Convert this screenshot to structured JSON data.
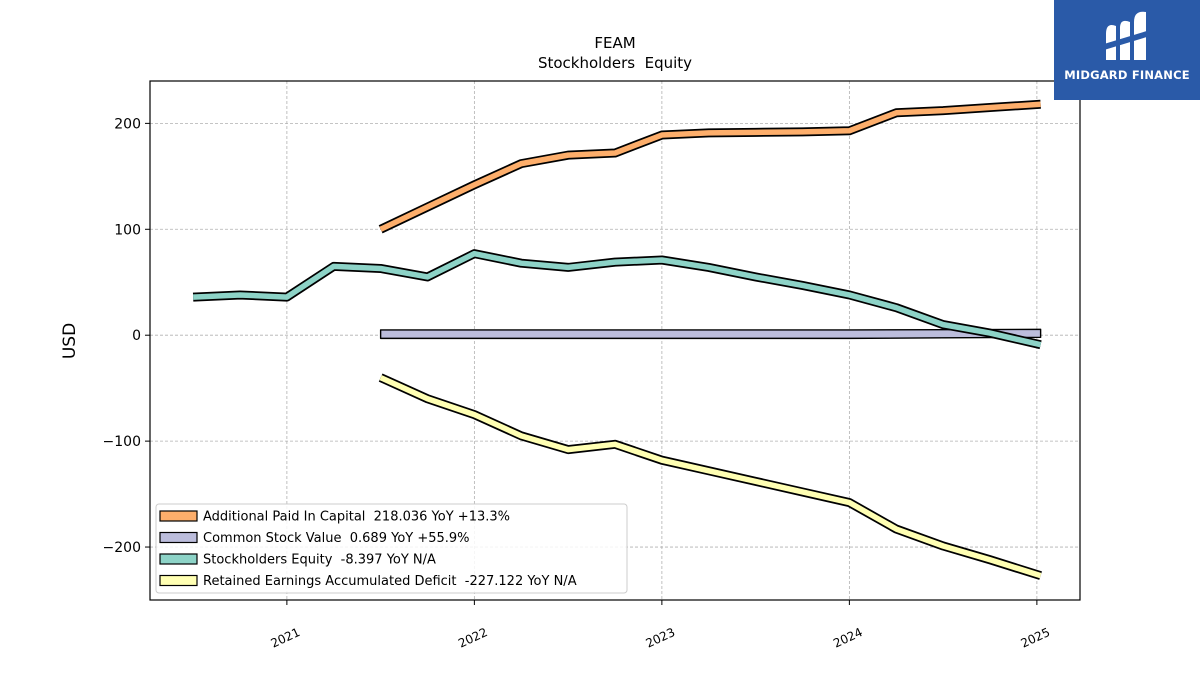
{
  "logo": {
    "text": "MIDGARD FINANCE",
    "bg_color": "#2a5aa8"
  },
  "chart_data": {
    "type": "line",
    "title": "FEAM",
    "subtitle": "Stockholders  Equity",
    "ylabel": "USD",
    "xlabel": "",
    "ylim": [
      -250,
      240
    ],
    "xlim": [
      2020.27,
      2025.23
    ],
    "yticks": [
      200,
      100,
      0,
      -100,
      -200
    ],
    "ytick_labels": [
      "200",
      "100",
      "0",
      "−100",
      "−200"
    ],
    "xticks": [
      2021,
      2022,
      2023,
      2024,
      2025
    ],
    "xtick_labels": [
      "2021",
      "2022",
      "2023",
      "2024",
      "2025"
    ],
    "grid": true,
    "legend_position": "bottom-left",
    "series": [
      {
        "name": "Additional Paid In Capital",
        "legend": "Additional Paid In Capital  218.036 YoY +13.3%",
        "color": "#fdae6b",
        "x": [
          2021.5,
          2021.75,
          2022.0,
          2022.25,
          2022.5,
          2022.75,
          2023.0,
          2023.25,
          2023.5,
          2023.75,
          2024.0,
          2024.25,
          2024.5,
          2024.75,
          2025.02
        ],
        "y": [
          100,
          121,
          142,
          162,
          170,
          172,
          189,
          191,
          191.5,
          192,
          193,
          210,
          212,
          215,
          218
        ]
      },
      {
        "name": "Common Stock Value",
        "legend": "Common Stock Value  0.689 YoY +55.9%",
        "color": "#bcbddc",
        "band": true,
        "x": [
          2021.5,
          2022.0,
          2022.5,
          2023.0,
          2023.5,
          2024.0,
          2024.5,
          2025.02
        ],
        "y_low": [
          -3,
          -3,
          -3,
          -3,
          -3,
          -3,
          -2.5,
          -2
        ],
        "y_high": [
          5,
          5,
          5,
          5,
          5,
          5,
          5.2,
          5.5
        ]
      },
      {
        "name": "Stockholders Equity",
        "legend": "Stockholders Equity  -8.397 YoY N/A",
        "color": "#8dd3c7",
        "x": [
          2020.5,
          2020.75,
          2021.0,
          2021.25,
          2021.5,
          2021.75,
          2022.0,
          2022.25,
          2022.5,
          2022.75,
          2023.0,
          2023.25,
          2023.5,
          2023.75,
          2024.0,
          2024.25,
          2024.5,
          2024.75,
          2025.02
        ],
        "y": [
          36,
          38,
          36,
          65,
          63,
          55,
          77,
          68,
          64,
          69,
          71,
          64,
          55,
          47,
          38,
          26,
          10,
          2,
          -9
        ]
      },
      {
        "name": "Retained Earnings Accumulated Deficit",
        "legend": "Retained Earnings Accumulated Deficit  -227.122 YoY N/A",
        "color": "#ffffb3",
        "x": [
          2021.5,
          2021.75,
          2022.0,
          2022.25,
          2022.5,
          2022.75,
          2023.0,
          2023.25,
          2023.5,
          2023.75,
          2024.0,
          2024.25,
          2024.5,
          2024.75,
          2025.02
        ],
        "y": [
          -40,
          -60,
          -75,
          -95,
          -108,
          -103,
          -118,
          -128,
          -138,
          -148,
          -158,
          -183,
          -199,
          -212,
          -227
        ]
      }
    ]
  }
}
